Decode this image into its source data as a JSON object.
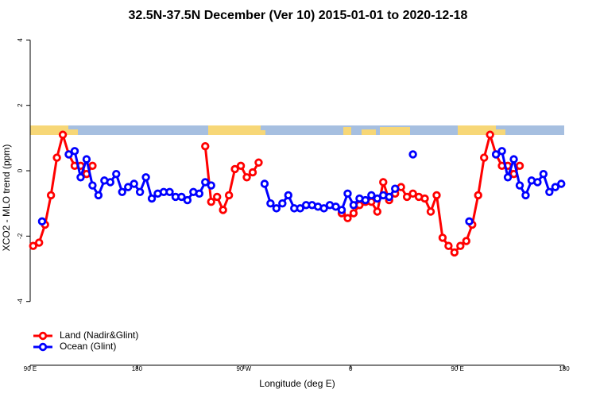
{
  "chart_data": {
    "type": "line",
    "title": "32.5N-37.5N December (Ver 10)   2015-01-01 to 2020-12-18",
    "x_label": "Longitude (deg E)",
    "y_label": "XCO2 - MLO trend (ppm)",
    "xlim": [
      90,
      540
    ],
    "xticks": [
      {
        "value": 90,
        "label": "90 E"
      },
      {
        "value": 180,
        "label": "180"
      },
      {
        "value": 270,
        "label": "90 W"
      },
      {
        "value": 360,
        "label": "0"
      },
      {
        "value": 450,
        "label": "90 E"
      },
      {
        "value": 540,
        "label": "180"
      }
    ],
    "ylim": [
      -5.95,
      4.3
    ],
    "yticks": [
      -4,
      -2,
      0,
      2,
      4
    ],
    "legend": "bottomleft",
    "series": [
      {
        "name": "Land (Nadir&Glint)",
        "color": "#ff0000",
        "x": [
          92.5,
          97.5,
          102.5,
          107.5,
          112.5,
          117.5,
          122.5,
          127.5,
          132.5,
          137.5,
          142.5,
          null,
          237.5,
          242.5,
          247.5,
          252.5,
          257.5,
          262.5,
          267.5,
          272.5,
          277.5,
          282.5,
          null,
          352.5,
          357.5,
          362.5,
          367.5,
          372.5,
          377.5,
          382.5,
          387.5,
          392.5,
          397.5,
          402.5,
          407.5,
          412.5,
          417.5,
          422.5,
          427.5,
          432.5,
          437.5,
          442.5,
          447.5,
          452.5,
          457.5,
          462.5,
          467.5,
          472.5,
          477.5,
          482.5,
          487.5,
          492.5,
          497.5,
          502.5
        ],
        "values": [
          -2.3,
          -2.2,
          -1.65,
          -0.75,
          0.4,
          1.1,
          0.5,
          0.15,
          0.15,
          -0.1,
          0.15,
          null,
          0.75,
          -0.95,
          -0.8,
          -1.2,
          -0.75,
          0.05,
          0.15,
          -0.2,
          -0.05,
          0.25,
          null,
          -1.3,
          -1.45,
          -1.3,
          -1.05,
          -0.95,
          -0.95,
          -1.25,
          -0.35,
          -0.9,
          -0.7,
          -0.5,
          -0.8,
          -0.7,
          -0.8,
          -0.85,
          -1.25,
          -0.75,
          -2.05,
          -2.3,
          -2.5,
          -2.3,
          -2.15,
          -1.65,
          -0.75,
          0.4,
          1.1,
          0.5,
          0.15,
          0.15,
          -0.1,
          0.15
        ]
      },
      {
        "name": "Ocean (Glint)",
        "color": "#0000ff",
        "x": [
          100,
          null,
          122.5,
          127.5,
          132.5,
          137.5,
          142.5,
          147.5,
          152.5,
          157.5,
          162.5,
          167.5,
          172.5,
          177.5,
          182.5,
          187.5,
          192.5,
          197.5,
          202.5,
          207.5,
          212.5,
          217.5,
          222.5,
          227.5,
          232.5,
          237.5,
          242.5,
          null,
          287.5,
          292.5,
          297.5,
          302.5,
          307.5,
          312.5,
          317.5,
          322.5,
          327.5,
          332.5,
          337.5,
          342.5,
          347.5,
          352.5,
          357.5,
          362.5,
          367.5,
          372.5,
          377.5,
          382.5,
          387.5,
          392.5,
          397.5,
          null,
          412.5,
          null,
          460,
          null,
          482.5,
          487.5,
          492.5,
          497.5,
          502.5,
          507.5,
          512.5,
          517.5,
          522.5,
          527.5,
          532.5,
          537.5
        ],
        "values": [
          -1.55,
          null,
          0.5,
          0.6,
          -0.2,
          0.35,
          -0.45,
          -0.75,
          -0.3,
          -0.35,
          -0.1,
          -0.65,
          -0.5,
          -0.4,
          -0.65,
          -0.2,
          -0.85,
          -0.7,
          -0.65,
          -0.65,
          -0.8,
          -0.8,
          -0.9,
          -0.65,
          -0.7,
          -0.35,
          -0.45,
          null,
          -0.4,
          -1.0,
          -1.15,
          -1.0,
          -0.75,
          -1.15,
          -1.15,
          -1.05,
          -1.05,
          -1.1,
          -1.15,
          -1.05,
          -1.1,
          -1.2,
          -0.7,
          -1.05,
          -0.85,
          -0.9,
          -0.75,
          -0.85,
          -0.75,
          -0.8,
          -0.55,
          null,
          0.5,
          null,
          -1.55,
          null,
          0.5,
          0.6,
          -0.2,
          0.35,
          -0.45,
          -0.75,
          -0.3,
          -0.35,
          -0.1,
          -0.65,
          -0.5,
          -0.4
        ]
      }
    ]
  }
}
